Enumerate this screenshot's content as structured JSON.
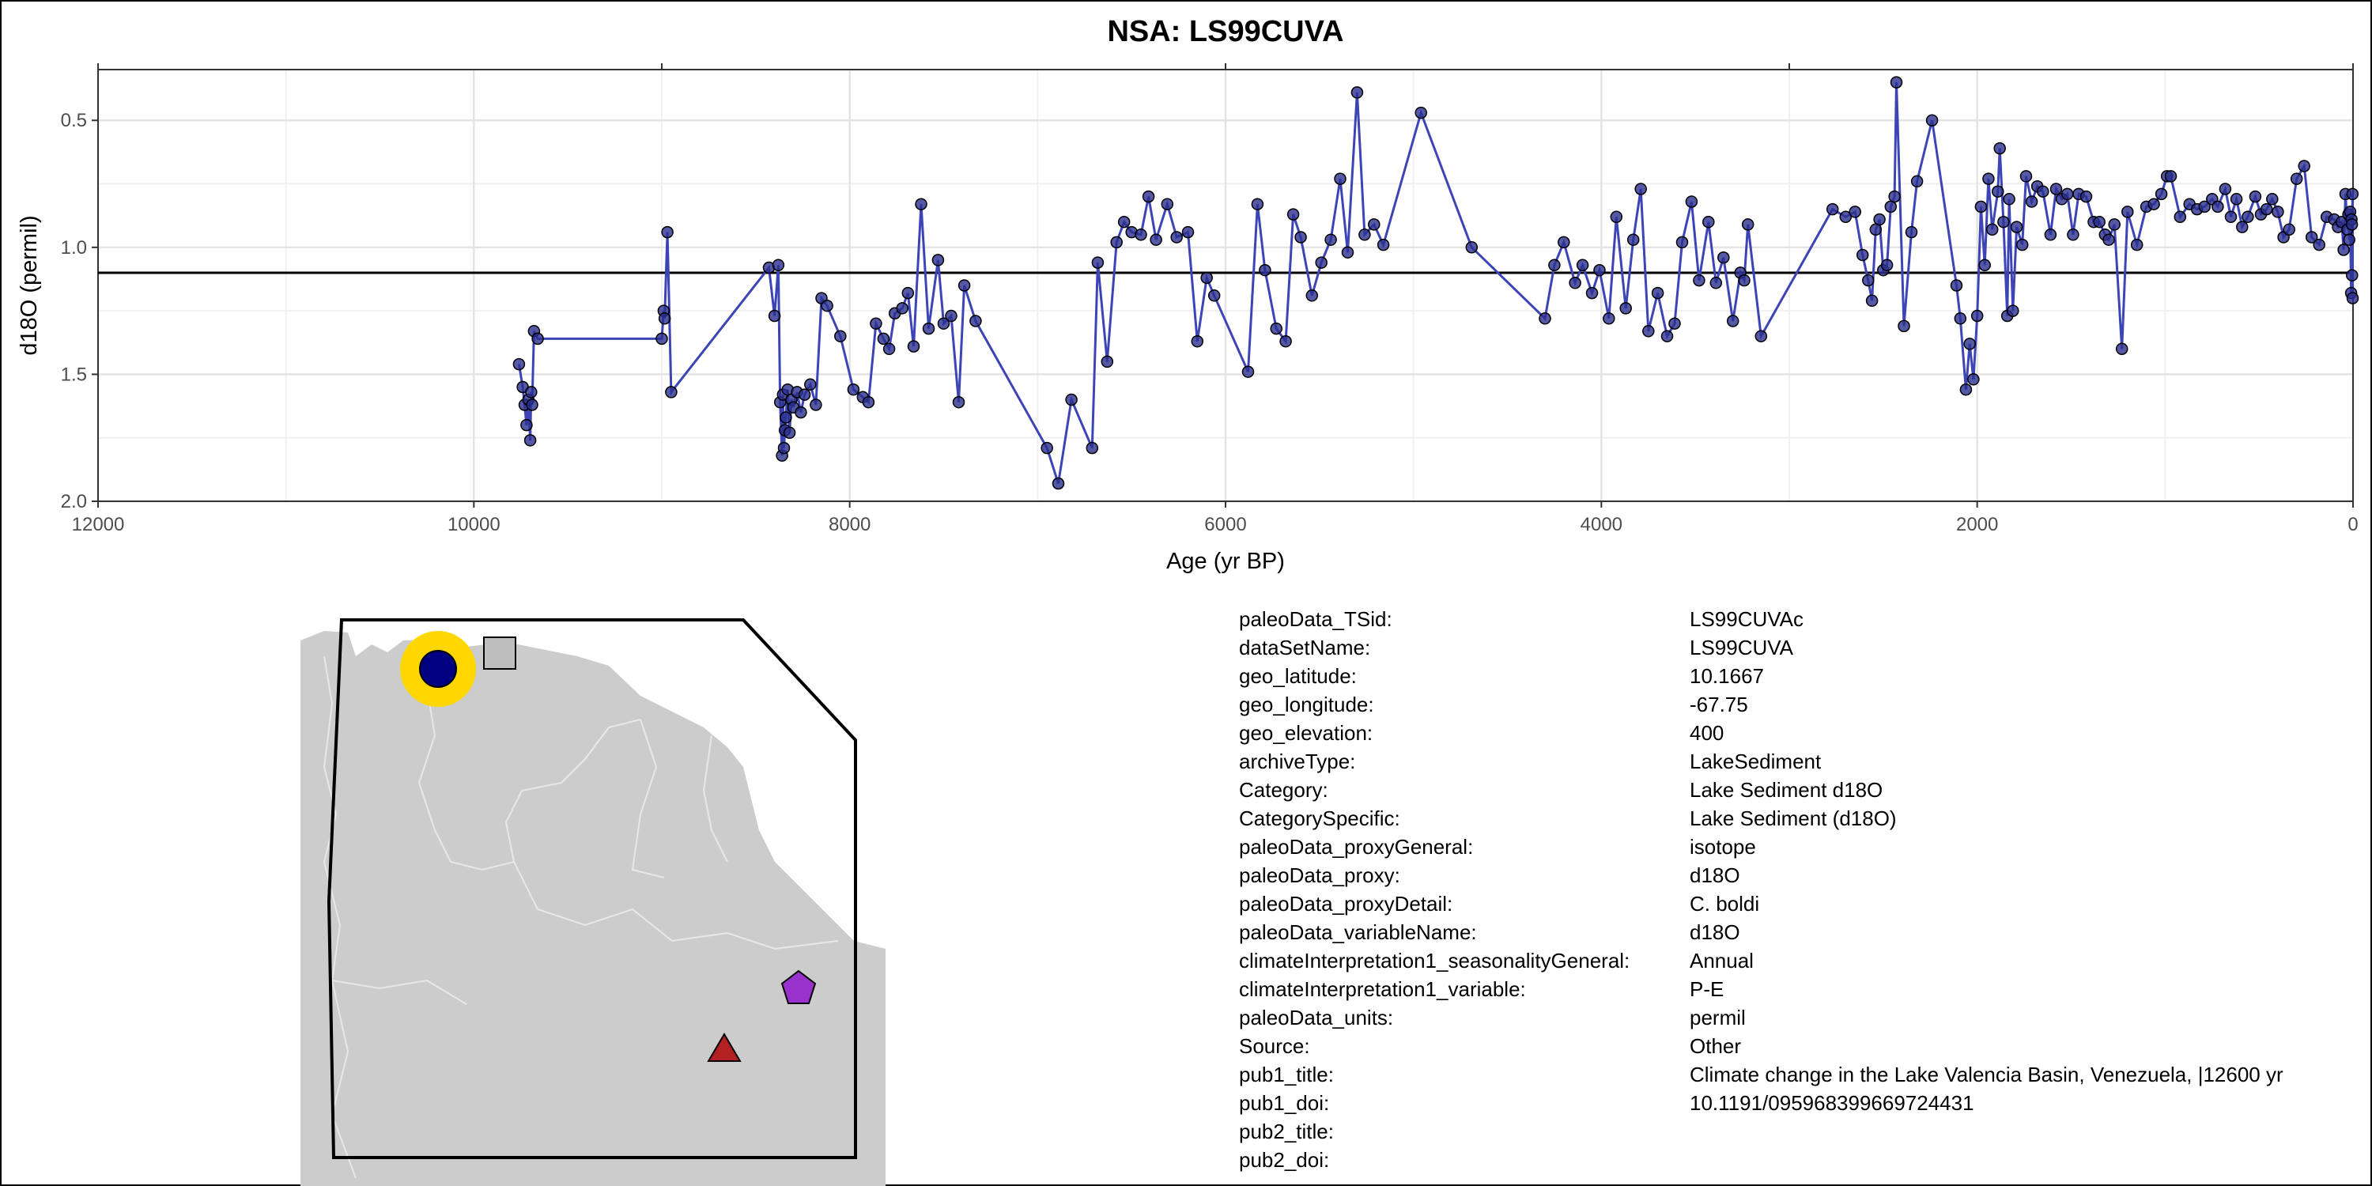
{
  "chart_data": {
    "type": "scatter",
    "title": "NSA: LS99CUVA",
    "xlabel": "Age (yr BP)",
    "ylabel": "d18O (permil)",
    "x_reversed": true,
    "y_reversed": true,
    "xlim": [
      12000,
      0
    ],
    "ylim": [
      2.0,
      0.3
    ],
    "x_ticks": [
      12000,
      10000,
      8000,
      6000,
      4000,
      2000,
      0
    ],
    "y_ticks": [
      0.5,
      1.0,
      1.5,
      2.0
    ],
    "y_tick_labels": [
      "0.5",
      "1.0",
      "1.5",
      "2.0"
    ],
    "hline": 1.1,
    "grid": true,
    "series": [
      {
        "color": "#3c44b6",
        "point_fill": "#2b2f8f",
        "points": [
          [
            9760,
            1.46
          ],
          [
            9740,
            1.55
          ],
          [
            9730,
            1.62
          ],
          [
            9720,
            1.7
          ],
          [
            9710,
            1.6
          ],
          [
            9700,
            1.76
          ],
          [
            9695,
            1.57
          ],
          [
            9690,
            1.62
          ],
          [
            9680,
            1.33
          ],
          [
            9660,
            1.36
          ],
          [
            9000,
            1.36
          ],
          [
            8990,
            1.25
          ],
          [
            8985,
            1.28
          ],
          [
            8970,
            0.94
          ],
          [
            8950,
            1.57
          ],
          [
            8430,
            1.08
          ],
          [
            8400,
            1.27
          ],
          [
            8380,
            1.07
          ],
          [
            8370,
            1.61
          ],
          [
            8360,
            1.82
          ],
          [
            8355,
            1.58
          ],
          [
            8350,
            1.79
          ],
          [
            8345,
            1.72
          ],
          [
            8340,
            1.67
          ],
          [
            8330,
            1.56
          ],
          [
            8320,
            1.73
          ],
          [
            8310,
            1.6
          ],
          [
            8300,
            1.63
          ],
          [
            8280,
            1.57
          ],
          [
            8260,
            1.65
          ],
          [
            8240,
            1.58
          ],
          [
            8210,
            1.54
          ],
          [
            8180,
            1.62
          ],
          [
            8150,
            1.2
          ],
          [
            8120,
            1.23
          ],
          [
            8050,
            1.35
          ],
          [
            7980,
            1.56
          ],
          [
            7930,
            1.59
          ],
          [
            7900,
            1.61
          ],
          [
            7860,
            1.3
          ],
          [
            7820,
            1.36
          ],
          [
            7790,
            1.4
          ],
          [
            7760,
            1.26
          ],
          [
            7720,
            1.24
          ],
          [
            7690,
            1.18
          ],
          [
            7660,
            1.39
          ],
          [
            7620,
            0.83
          ],
          [
            7580,
            1.32
          ],
          [
            7530,
            1.05
          ],
          [
            7500,
            1.3
          ],
          [
            7460,
            1.27
          ],
          [
            7420,
            1.61
          ],
          [
            7390,
            1.15
          ],
          [
            7330,
            1.29
          ],
          [
            6950,
            1.79
          ],
          [
            6890,
            1.93
          ],
          [
            6820,
            1.6
          ],
          [
            6710,
            1.79
          ],
          [
            6680,
            1.06
          ],
          [
            6630,
            1.45
          ],
          [
            6580,
            0.98
          ],
          [
            6540,
            0.9
          ],
          [
            6500,
            0.94
          ],
          [
            6450,
            0.95
          ],
          [
            6410,
            0.8
          ],
          [
            6370,
            0.97
          ],
          [
            6310,
            0.83
          ],
          [
            6260,
            0.96
          ],
          [
            6200,
            0.94
          ],
          [
            6150,
            1.37
          ],
          [
            6100,
            1.12
          ],
          [
            6060,
            1.19
          ],
          [
            5880,
            1.49
          ],
          [
            5830,
            0.83
          ],
          [
            5790,
            1.09
          ],
          [
            5730,
            1.32
          ],
          [
            5680,
            1.37
          ],
          [
            5640,
            0.87
          ],
          [
            5600,
            0.96
          ],
          [
            5540,
            1.19
          ],
          [
            5490,
            1.06
          ],
          [
            5440,
            0.97
          ],
          [
            5390,
            0.73
          ],
          [
            5350,
            1.02
          ],
          [
            5300,
            0.39
          ],
          [
            5260,
            0.95
          ],
          [
            5210,
            0.91
          ],
          [
            5160,
            0.99
          ],
          [
            4960,
            0.47
          ],
          [
            4690,
            1.0
          ],
          [
            4300,
            1.28
          ],
          [
            4250,
            1.07
          ],
          [
            4200,
            0.98
          ],
          [
            4140,
            1.14
          ],
          [
            4100,
            1.07
          ],
          [
            4050,
            1.18
          ],
          [
            4010,
            1.09
          ],
          [
            3960,
            1.28
          ],
          [
            3920,
            0.88
          ],
          [
            3870,
            1.24
          ],
          [
            3830,
            0.97
          ],
          [
            3790,
            0.77
          ],
          [
            3750,
            1.33
          ],
          [
            3700,
            1.18
          ],
          [
            3650,
            1.35
          ],
          [
            3610,
            1.3
          ],
          [
            3570,
            0.98
          ],
          [
            3520,
            0.82
          ],
          [
            3480,
            1.13
          ],
          [
            3430,
            0.9
          ],
          [
            3390,
            1.14
          ],
          [
            3350,
            1.04
          ],
          [
            3300,
            1.29
          ],
          [
            3260,
            1.1
          ],
          [
            3240,
            1.13
          ],
          [
            3220,
            0.91
          ],
          [
            3150,
            1.35
          ],
          [
            2770,
            0.85
          ],
          [
            2700,
            0.88
          ],
          [
            2650,
            0.86
          ],
          [
            2610,
            1.03
          ],
          [
            2580,
            1.13
          ],
          [
            2560,
            1.21
          ],
          [
            2540,
            0.93
          ],
          [
            2520,
            0.89
          ],
          [
            2500,
            1.09
          ],
          [
            2480,
            1.07
          ],
          [
            2460,
            0.84
          ],
          [
            2440,
            0.8
          ],
          [
            2430,
            0.35
          ],
          [
            2390,
            1.31
          ],
          [
            2350,
            0.94
          ],
          [
            2320,
            0.74
          ],
          [
            2240,
            0.5
          ],
          [
            2110,
            1.15
          ],
          [
            2090,
            1.28
          ],
          [
            2060,
            1.56
          ],
          [
            2040,
            1.38
          ],
          [
            2020,
            1.52
          ],
          [
            2000,
            1.27
          ],
          [
            1980,
            0.84
          ],
          [
            1960,
            1.07
          ],
          [
            1940,
            0.73
          ],
          [
            1920,
            0.93
          ],
          [
            1890,
            0.78
          ],
          [
            1880,
            0.61
          ],
          [
            1860,
            0.9
          ],
          [
            1840,
            1.27
          ],
          [
            1830,
            0.81
          ],
          [
            1810,
            1.25
          ],
          [
            1790,
            0.92
          ],
          [
            1760,
            0.99
          ],
          [
            1740,
            0.72
          ],
          [
            1710,
            0.82
          ],
          [
            1680,
            0.76
          ],
          [
            1650,
            0.78
          ],
          [
            1610,
            0.95
          ],
          [
            1580,
            0.77
          ],
          [
            1550,
            0.81
          ],
          [
            1520,
            0.79
          ],
          [
            1490,
            0.95
          ],
          [
            1460,
            0.79
          ],
          [
            1420,
            0.8
          ],
          [
            1380,
            0.9
          ],
          [
            1350,
            0.9
          ],
          [
            1320,
            0.95
          ],
          [
            1300,
            0.97
          ],
          [
            1270,
            0.91
          ],
          [
            1230,
            1.4
          ],
          [
            1200,
            0.86
          ],
          [
            1150,
            0.99
          ],
          [
            1100,
            0.84
          ],
          [
            1060,
            0.83
          ],
          [
            1020,
            0.79
          ],
          [
            990,
            0.72
          ],
          [
            970,
            0.72
          ],
          [
            920,
            0.88
          ],
          [
            870,
            0.83
          ],
          [
            830,
            0.85
          ],
          [
            790,
            0.84
          ],
          [
            750,
            0.81
          ],
          [
            720,
            0.84
          ],
          [
            680,
            0.77
          ],
          [
            650,
            0.88
          ],
          [
            620,
            0.81
          ],
          [
            590,
            0.92
          ],
          [
            560,
            0.88
          ],
          [
            520,
            0.8
          ],
          [
            490,
            0.87
          ],
          [
            460,
            0.85
          ],
          [
            430,
            0.81
          ],
          [
            400,
            0.86
          ],
          [
            370,
            0.96
          ],
          [
            340,
            0.93
          ],
          [
            300,
            0.73
          ],
          [
            260,
            0.68
          ],
          [
            220,
            0.96
          ],
          [
            180,
            0.99
          ],
          [
            140,
            0.88
          ],
          [
            100,
            0.89
          ],
          [
            80,
            0.92
          ],
          [
            60,
            0.9
          ],
          [
            50,
            1.01
          ],
          [
            40,
            0.79
          ],
          [
            30,
            0.93
          ],
          [
            25,
            0.87
          ],
          [
            20,
            0.97
          ],
          [
            15,
            0.86
          ],
          [
            10,
            1.18
          ],
          [
            8,
            0.89
          ],
          [
            6,
            0.91
          ],
          [
            5,
            1.11
          ],
          [
            3,
            0.79
          ],
          [
            2,
            1.2
          ]
        ]
      }
    ]
  },
  "map": {
    "land_color": "#cccccc",
    "site_marker_color": "#000080",
    "site_ring_color": "#ffd700",
    "markers": [
      {
        "shape": "circle",
        "color": "#000080"
      },
      {
        "shape": "square",
        "color": "#bebebe"
      },
      {
        "shape": "pentagon",
        "color": "#9932cc"
      },
      {
        "shape": "triangle",
        "color": "#b22222"
      }
    ]
  },
  "metadata": [
    {
      "key": "paleoData_TSid:",
      "value": "LS99CUVAc"
    },
    {
      "key": "dataSetName:",
      "value": "LS99CUVA"
    },
    {
      "key": "geo_latitude:",
      "value": "10.1667"
    },
    {
      "key": "geo_longitude:",
      "value": "-67.75"
    },
    {
      "key": "geo_elevation:",
      "value": "400"
    },
    {
      "key": "archiveType:",
      "value": "LakeSediment"
    },
    {
      "key": "Category:",
      "value": "Lake Sediment d18O"
    },
    {
      "key": "CategorySpecific:",
      "value": "Lake Sediment (d18O)"
    },
    {
      "key": "paleoData_proxyGeneral:",
      "value": "isotope"
    },
    {
      "key": "paleoData_proxy:",
      "value": "d18O"
    },
    {
      "key": "paleoData_proxyDetail:",
      "value": "C. boldi"
    },
    {
      "key": "paleoData_variableName:",
      "value": "d18O"
    },
    {
      "key": "climateInterpretation1_seasonalityGeneral:",
      "value": "Annual"
    },
    {
      "key": "climateInterpretation1_variable:",
      "value": "P-E"
    },
    {
      "key": "paleoData_units:",
      "value": "permil"
    },
    {
      "key": "Source:",
      "value": "Other"
    },
    {
      "key": "pub1_title:",
      "value": "Climate change in the Lake Valencia Basin, Venezuela, |12600 yr"
    },
    {
      "key": "pub1_doi:",
      "value": "10.1191/095968399669724431"
    },
    {
      "key": "pub2_title:",
      "value": ""
    },
    {
      "key": "pub2_doi:",
      "value": ""
    }
  ]
}
